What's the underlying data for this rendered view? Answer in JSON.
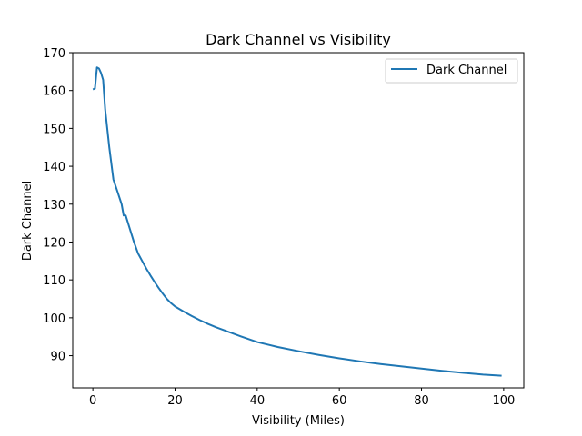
{
  "chart_data": {
    "type": "line",
    "title": "Dark Channel vs Visibility",
    "xlabel": "Visibility (Miles)",
    "ylabel": "Dark Channel",
    "xlim": [
      -4.9,
      104.9
    ],
    "ylim": [
      81.5,
      170
    ],
    "xticks": [
      0,
      20,
      40,
      60,
      80,
      100
    ],
    "yticks": [
      90,
      100,
      110,
      120,
      130,
      140,
      150,
      160,
      170
    ],
    "grid": false,
    "legend_position": "top-right",
    "series": [
      {
        "name": "Dark Channel",
        "color": "#1f77b4",
        "x": [
          0,
          0.5,
          1,
          1.5,
          2,
          2.5,
          3,
          4,
          5,
          6,
          7,
          7.5,
          8,
          9,
          10,
          11,
          12,
          13,
          14,
          15,
          16,
          17,
          18,
          19,
          20,
          22,
          24,
          26,
          28,
          30,
          33,
          36,
          40,
          45,
          50,
          55,
          60,
          65,
          70,
          75,
          80,
          85,
          90,
          95,
          99.5
        ],
        "values": [
          160.3,
          160.5,
          166.1,
          165.8,
          164.6,
          162.8,
          155.0,
          145.0,
          136.5,
          133.3,
          130.0,
          127.0,
          127.0,
          123.5,
          120.0,
          117.0,
          115.0,
          113.0,
          111.2,
          109.5,
          107.9,
          106.4,
          105.0,
          103.9,
          103.0,
          101.7,
          100.5,
          99.4,
          98.4,
          97.5,
          96.3,
          95.1,
          93.6,
          92.3,
          91.2,
          90.2,
          89.3,
          88.5,
          87.8,
          87.2,
          86.6,
          86.0,
          85.5,
          85.0,
          84.7
        ]
      }
    ]
  }
}
